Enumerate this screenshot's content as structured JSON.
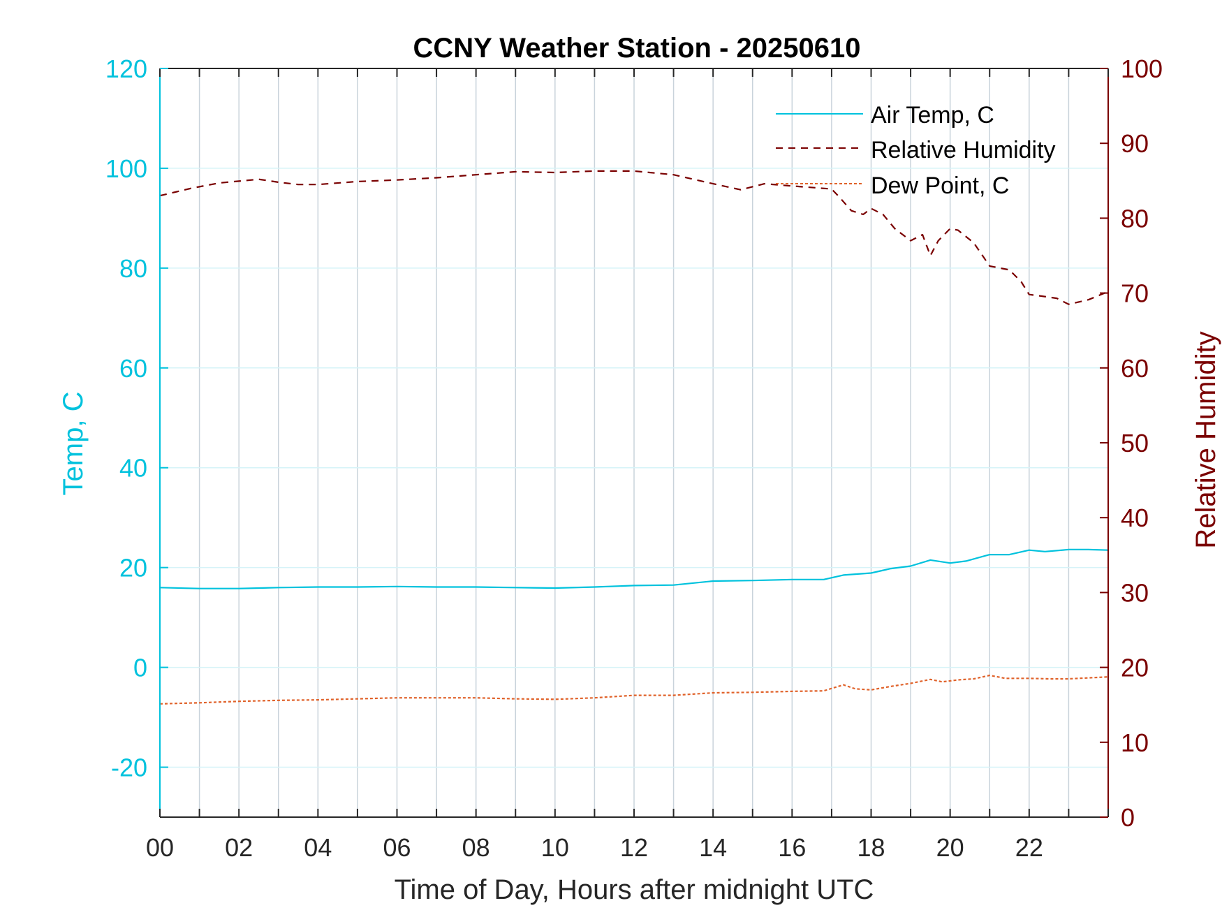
{
  "colors": {
    "air_temp": "#00C2DD",
    "relative_humidity": "#7A0000",
    "dew_point": "#E0622A",
    "grid_vertical": "#C9D3DB",
    "grid_horizontal": "#D6F3F8",
    "x_axis": "#262626"
  },
  "chart_data": {
    "type": "line",
    "title": "CCNY Weather Station - 20250610",
    "xlabel": "Time of Day, Hours after midnight UTC",
    "ylabel_left": "Temp, C",
    "ylabel_right": "Relative Humidity",
    "xlim": [
      0,
      24
    ],
    "ylim_left": [
      -30,
      120
    ],
    "ylim_right": [
      0,
      100
    ],
    "x_ticks": [
      0,
      2,
      4,
      6,
      8,
      10,
      12,
      14,
      16,
      18,
      20,
      22
    ],
    "x_tick_labels": [
      "00",
      "02",
      "04",
      "06",
      "08",
      "10",
      "12",
      "14",
      "16",
      "18",
      "20",
      "22"
    ],
    "y_left_ticks": [
      -20,
      0,
      20,
      40,
      60,
      80,
      100,
      120
    ],
    "y_left_tick_labels": [
      "-20",
      "0",
      "20",
      "40",
      "60",
      "80",
      "100",
      "120"
    ],
    "y_right_ticks": [
      0,
      10,
      20,
      30,
      40,
      50,
      60,
      70,
      80,
      90,
      100
    ],
    "y_right_tick_labels": [
      "0",
      "10",
      "20",
      "30",
      "40",
      "50",
      "60",
      "70",
      "80",
      "90",
      "100"
    ],
    "grid": "x-major-gray, y-major-light-cyan",
    "legend_position": "top-right",
    "series": [
      {
        "name": "Air Temp, C",
        "axis": "left",
        "style": "solid",
        "x": [
          0,
          1,
          2,
          3,
          4,
          5,
          6,
          7,
          8,
          9,
          10,
          11,
          12,
          13,
          14,
          15,
          16,
          16.8,
          17.3,
          18,
          18.5,
          19,
          19.5,
          20,
          20.4,
          21,
          21.5,
          22,
          22.4,
          23,
          23.5,
          24
        ],
        "values": [
          16,
          15.8,
          15.8,
          16,
          16.1,
          16.1,
          16.2,
          16.1,
          16.1,
          16,
          15.9,
          16.1,
          16.4,
          16.5,
          17.3,
          17.4,
          17.6,
          17.6,
          18.5,
          18.9,
          19.8,
          20.3,
          21.5,
          20.9,
          21.3,
          22.6,
          22.6,
          23.5,
          23.2,
          23.6,
          23.6,
          23.5
        ]
      },
      {
        "name": "Relative Humidity",
        "axis": "right",
        "style": "dashed",
        "x": [
          0,
          0.8,
          1.5,
          2.5,
          3,
          3.5,
          4,
          5,
          6,
          7,
          8,
          9,
          10,
          11,
          12,
          13,
          14,
          14.7,
          15.3,
          16,
          17,
          17.2,
          17.5,
          17.8,
          18,
          18.3,
          18.6,
          19,
          19.3,
          19.5,
          19.7,
          20,
          20.2,
          20.6,
          21,
          21.5,
          21.8,
          22,
          22.3,
          22.7,
          23,
          23.5,
          24
        ],
        "values": [
          83,
          84,
          84.7,
          85.2,
          84.8,
          84.5,
          84.5,
          84.9,
          85.1,
          85.4,
          85.8,
          86.2,
          86.1,
          86.3,
          86.3,
          85.8,
          84.6,
          83.8,
          84.6,
          84.3,
          83.9,
          82.8,
          81,
          80.5,
          81.3,
          80.5,
          78.6,
          77,
          77.8,
          75,
          77,
          78.6,
          78.4,
          76.7,
          73.6,
          73.1,
          71.5,
          69.8,
          69.6,
          69.3,
          68.5,
          69.1,
          70.2
        ]
      },
      {
        "name": "Dew Point, C",
        "axis": "left",
        "style": "dotted",
        "x": [
          0,
          1,
          2,
          3,
          4,
          5,
          6,
          7,
          8,
          9,
          10,
          11,
          12,
          13,
          14,
          15,
          16,
          16.8,
          17.3,
          17.6,
          18,
          18.5,
          19,
          19.5,
          19.8,
          20.2,
          20.6,
          21,
          21.4,
          22,
          22.5,
          23,
          24
        ],
        "values": [
          -7.3,
          -7.1,
          -6.8,
          -6.6,
          -6.5,
          -6.3,
          -6.1,
          -6.1,
          -6.1,
          -6.3,
          -6.4,
          -6.1,
          -5.6,
          -5.6,
          -5.1,
          -5,
          -4.8,
          -4.7,
          -3.5,
          -4.3,
          -4.5,
          -3.8,
          -3.2,
          -2.4,
          -2.9,
          -2.5,
          -2.3,
          -1.6,
          -2.2,
          -2.2,
          -2.3,
          -2.3,
          -1.9
        ]
      }
    ]
  }
}
